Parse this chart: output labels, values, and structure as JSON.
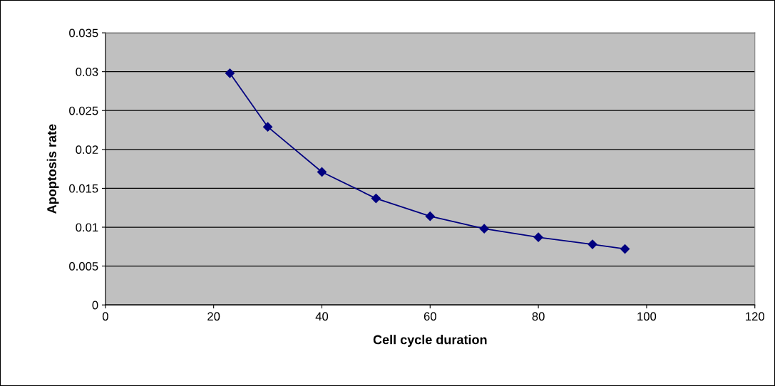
{
  "chart_data": {
    "type": "line",
    "xlabel": "Cell cycle duration",
    "ylabel": "Apoptosis rate",
    "x": [
      23,
      30,
      40,
      50,
      60,
      70,
      80,
      90,
      96
    ],
    "series": [
      {
        "color": "#000080",
        "values": [
          0.0298,
          0.0229,
          0.0171,
          0.0137,
          0.0114,
          0.0098,
          0.0087,
          0.0078,
          0.0072
        ]
      }
    ],
    "xlim": [
      0,
      120
    ],
    "xticks": [
      0,
      20,
      40,
      60,
      80,
      100,
      120
    ],
    "ylim": [
      0,
      0.035
    ],
    "yticks": [
      0,
      0.005,
      0.01,
      0.015,
      0.02,
      0.025,
      0.03,
      0.035
    ],
    "grid": "y",
    "marker": "diamond",
    "line_style": "solid",
    "legend": false
  }
}
